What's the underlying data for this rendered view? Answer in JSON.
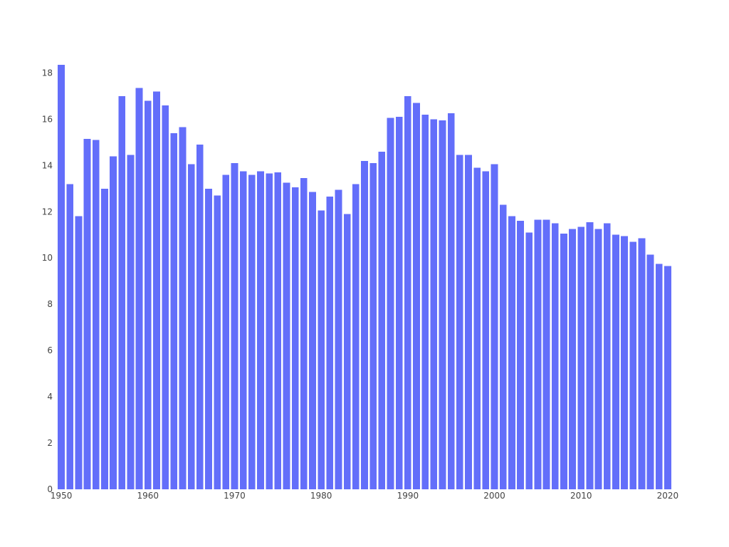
{
  "chart_data": {
    "type": "bar",
    "title": "",
    "xlabel": "",
    "ylabel": "",
    "x": [
      1950,
      1951,
      1952,
      1953,
      1954,
      1955,
      1956,
      1957,
      1958,
      1959,
      1960,
      1961,
      1962,
      1963,
      1964,
      1965,
      1966,
      1967,
      1968,
      1969,
      1970,
      1971,
      1972,
      1973,
      1974,
      1975,
      1976,
      1977,
      1978,
      1979,
      1980,
      1981,
      1982,
      1983,
      1984,
      1985,
      1986,
      1987,
      1988,
      1989,
      1990,
      1991,
      1992,
      1993,
      1994,
      1995,
      1996,
      1997,
      1998,
      1999,
      2000,
      2001,
      2002,
      2003,
      2004,
      2005,
      2006,
      2007,
      2008,
      2009,
      2010,
      2011,
      2012,
      2013,
      2014,
      2015,
      2016,
      2017,
      2018,
      2019,
      2020
    ],
    "values": [
      18.35,
      13.2,
      11.8,
      15.15,
      15.1,
      13.0,
      14.4,
      17.0,
      14.45,
      17.35,
      16.8,
      17.2,
      16.6,
      15.4,
      15.65,
      14.05,
      14.9,
      13.0,
      12.7,
      13.6,
      14.1,
      13.75,
      13.6,
      13.75,
      13.65,
      13.7,
      13.25,
      13.05,
      13.45,
      12.85,
      12.05,
      12.65,
      12.95,
      11.9,
      13.2,
      14.2,
      14.1,
      14.6,
      16.05,
      16.1,
      17.0,
      16.7,
      16.2,
      16.0,
      15.95,
      16.25,
      14.45,
      14.45,
      13.9,
      13.75,
      14.05,
      12.3,
      11.8,
      11.6,
      11.1,
      11.65,
      11.65,
      11.5,
      11.05,
      11.25,
      11.35,
      11.55,
      11.25,
      11.5,
      11.0,
      10.95,
      10.7,
      10.85,
      10.15,
      9.75,
      9.65
    ],
    "xlim": [
      1949.5,
      2020.5
    ],
    "ylim": [
      0,
      18.35
    ],
    "x_ticks": [
      "1950",
      "1960",
      "1970",
      "1980",
      "1990",
      "2000",
      "2010",
      "2020"
    ],
    "y_ticks": [
      "0",
      "2",
      "4",
      "6",
      "8",
      "10",
      "12",
      "14",
      "16",
      "18"
    ],
    "bar_color": "#636efa",
    "grid": false,
    "legend": "none"
  }
}
